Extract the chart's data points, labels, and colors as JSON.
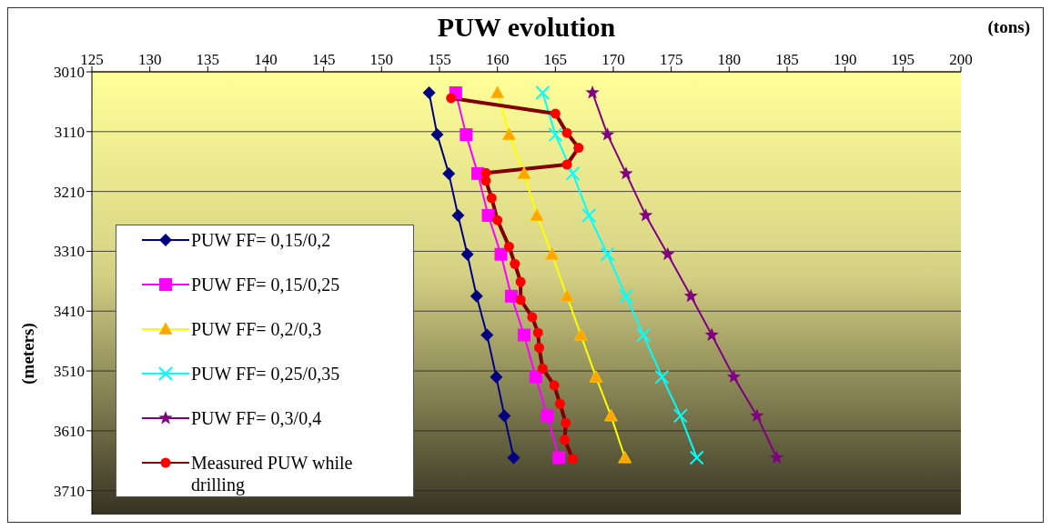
{
  "chart_data": {
    "type": "line",
    "title": "PUW evolution",
    "xlabel": "(tons)",
    "ylabel": "(meters)",
    "xlim": [
      125,
      200
    ],
    "xticks": [
      125,
      130,
      135,
      140,
      145,
      150,
      155,
      160,
      165,
      170,
      175,
      180,
      185,
      190,
      195,
      200
    ],
    "ylim": [
      3750,
      3010
    ],
    "yticks": [
      3010,
      3110,
      3210,
      3310,
      3410,
      3510,
      3610,
      3710
    ],
    "grid": "y",
    "legend": "left",
    "series": [
      {
        "name": "PUW FF= 0,15/0,2",
        "color": "#000080",
        "marker": "diamond",
        "x": [
          154.1,
          154.8,
          155.8,
          156.6,
          157.4,
          158.2,
          159.1,
          159.9,
          160.6,
          161.4
        ],
        "values": [
          3045,
          3115,
          3180,
          3250,
          3315,
          3385,
          3450,
          3520,
          3585,
          3655
        ]
      },
      {
        "name": "PUW FF= 0,15/0,25",
        "color": "#ff00ff",
        "marker": "square",
        "x": [
          156.4,
          157.3,
          158.3,
          159.2,
          160.3,
          161.2,
          162.3,
          163.3,
          164.3,
          165.3
        ],
        "values": [
          3045,
          3115,
          3180,
          3250,
          3315,
          3385,
          3450,
          3520,
          3585,
          3655
        ]
      },
      {
        "name": "PUW FF= 0,2/0,3",
        "color": "#ffff00",
        "marker": "triangle",
        "x": [
          160.0,
          161.0,
          162.3,
          163.4,
          164.7,
          166.0,
          167.2,
          168.5,
          169.8,
          171.0
        ],
        "values": [
          3045,
          3115,
          3180,
          3250,
          3315,
          3385,
          3450,
          3520,
          3585,
          3655
        ]
      },
      {
        "name": "PUW FF= 0,25/0,35",
        "color": "#00ffff",
        "marker": "cross",
        "x": [
          163.9,
          165.0,
          166.5,
          167.9,
          169.5,
          171.1,
          172.6,
          174.2,
          175.8,
          177.2
        ],
        "values": [
          3045,
          3115,
          3180,
          3250,
          3315,
          3385,
          3450,
          3520,
          3585,
          3655
        ]
      },
      {
        "name": "PUW FF= 0,3/0,4",
        "color": "#800080",
        "marker": "star",
        "x": [
          168.2,
          169.5,
          171.1,
          172.8,
          174.7,
          176.7,
          178.5,
          180.4,
          182.4,
          184.1
        ],
        "values": [
          3045,
          3115,
          3180,
          3250,
          3315,
          3385,
          3450,
          3520,
          3585,
          3655
        ]
      },
      {
        "name": "Measured PUW while drilling",
        "color": "#800000",
        "marker": "circle",
        "x": [
          156.0,
          165.0,
          166.0,
          167.0,
          166.0,
          159.0,
          159.0,
          159.5,
          160.0,
          161.0,
          161.5,
          162.0,
          162.0,
          163.0,
          163.5,
          163.6,
          163.9,
          164.9,
          165.4,
          165.9,
          165.8,
          166.5
        ],
        "values": [
          3054,
          3080,
          3112,
          3137,
          3165,
          3179,
          3192,
          3221,
          3258,
          3302,
          3331,
          3361,
          3391,
          3420,
          3446,
          3471,
          3506,
          3534,
          3565,
          3597,
          3625,
          3657
        ]
      }
    ]
  }
}
